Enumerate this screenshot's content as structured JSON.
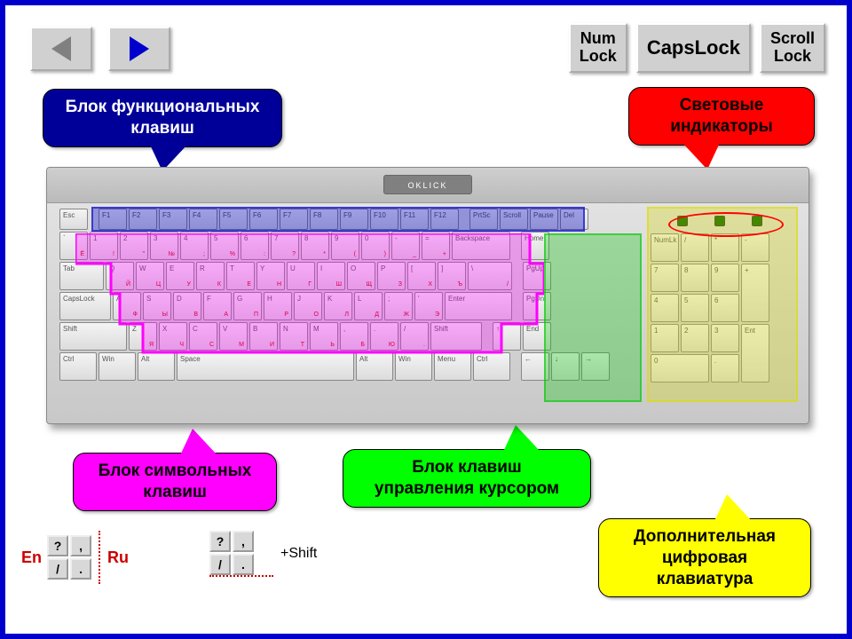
{
  "nav": {
    "prev": "previous",
    "next": "next"
  },
  "locks": {
    "num": "Num\nLock",
    "caps": "CapsLock",
    "scroll": "Scroll\nLock"
  },
  "callouts": {
    "functional": "Блок функциональных\nклавиш",
    "indicators": "Световые\nиндикаторы",
    "symbols": "Блок символьных\nклавиш",
    "cursor": "Блок клавиш\nуправления курсором",
    "numpad": "Дополнительная\nцифровая\nклавиатура"
  },
  "keyboard": {
    "brand": "OKLICK",
    "overlay_colors": {
      "functional": "#0000c8",
      "symbols": "#ff00ff",
      "cursor": "#00c800",
      "numpad": "#dcdc00",
      "leds_ring": "#ff0000"
    },
    "rows": {
      "fn": [
        "Esc",
        "F1",
        "F2",
        "F3",
        "F4",
        "F5",
        "F6",
        "F7",
        "F8",
        "F9",
        "F10",
        "F11",
        "F12",
        "PrtSc",
        "Scroll",
        "Pause",
        "Del"
      ],
      "r1": [
        [
          "`",
          "Ё"
        ],
        [
          "1",
          "!"
        ],
        [
          "2",
          "\""
        ],
        [
          "3",
          "№"
        ],
        [
          "4",
          ";"
        ],
        [
          "5",
          "%"
        ],
        [
          "6",
          ":"
        ],
        [
          "7",
          "?"
        ],
        [
          "8",
          "*"
        ],
        [
          "9",
          "("
        ],
        [
          "0",
          ")"
        ],
        [
          "-",
          "_"
        ],
        [
          "=",
          "+"
        ],
        "Backspace",
        "Home"
      ],
      "r2": [
        "Tab",
        [
          "Q",
          "Й"
        ],
        [
          "W",
          "Ц"
        ],
        [
          "E",
          "У"
        ],
        [
          "R",
          "К"
        ],
        [
          "T",
          "Е"
        ],
        [
          "Y",
          "Н"
        ],
        [
          "U",
          "Г"
        ],
        [
          "I",
          "Ш"
        ],
        [
          "O",
          "Щ"
        ],
        [
          "P",
          "З"
        ],
        [
          "[",
          "Х"
        ],
        [
          "]",
          "Ъ"
        ],
        [
          "\\",
          "/"
        ],
        "PgUp"
      ],
      "r3": [
        "CapsLock",
        [
          "A",
          "Ф"
        ],
        [
          "S",
          "Ы"
        ],
        [
          "D",
          "В"
        ],
        [
          "F",
          "А"
        ],
        [
          "G",
          "П"
        ],
        [
          "H",
          "Р"
        ],
        [
          "J",
          "О"
        ],
        [
          "K",
          "Л"
        ],
        [
          "L",
          "Д"
        ],
        [
          ";",
          "Ж"
        ],
        [
          "'",
          "Э"
        ],
        "Enter",
        "PgDn"
      ],
      "r4": [
        "Shift",
        [
          "Z",
          "Я"
        ],
        [
          "X",
          "Ч"
        ],
        [
          "C",
          "С"
        ],
        [
          "V",
          "М"
        ],
        [
          "B",
          "И"
        ],
        [
          "N",
          "Т"
        ],
        [
          "M",
          "Ь"
        ],
        [
          ",",
          "Б"
        ],
        [
          ".",
          "Ю"
        ],
        [
          "/",
          "."
        ],
        "Shift",
        "↑",
        "End"
      ],
      "r5": [
        "Ctrl",
        "Win",
        "Alt",
        "Space",
        "Alt",
        "Win",
        "Menu",
        "Ctrl",
        "←",
        "↓",
        "→"
      ],
      "numpad": [
        [
          "NumLk",
          "/",
          "*",
          "-"
        ],
        [
          "7",
          "8",
          "9",
          "+"
        ],
        [
          "4",
          "5",
          "6",
          ""
        ],
        [
          "1",
          "2",
          "3",
          "Ent"
        ],
        [
          "0",
          "",
          ".",
          ""
        ]
      ]
    }
  },
  "legend": {
    "en": "En",
    "ru": "Ru",
    "shift": "+Shift",
    "box1": [
      "?",
      ",",
      "/",
      "."
    ],
    "box2": [
      "?",
      ",",
      "/",
      "."
    ]
  }
}
